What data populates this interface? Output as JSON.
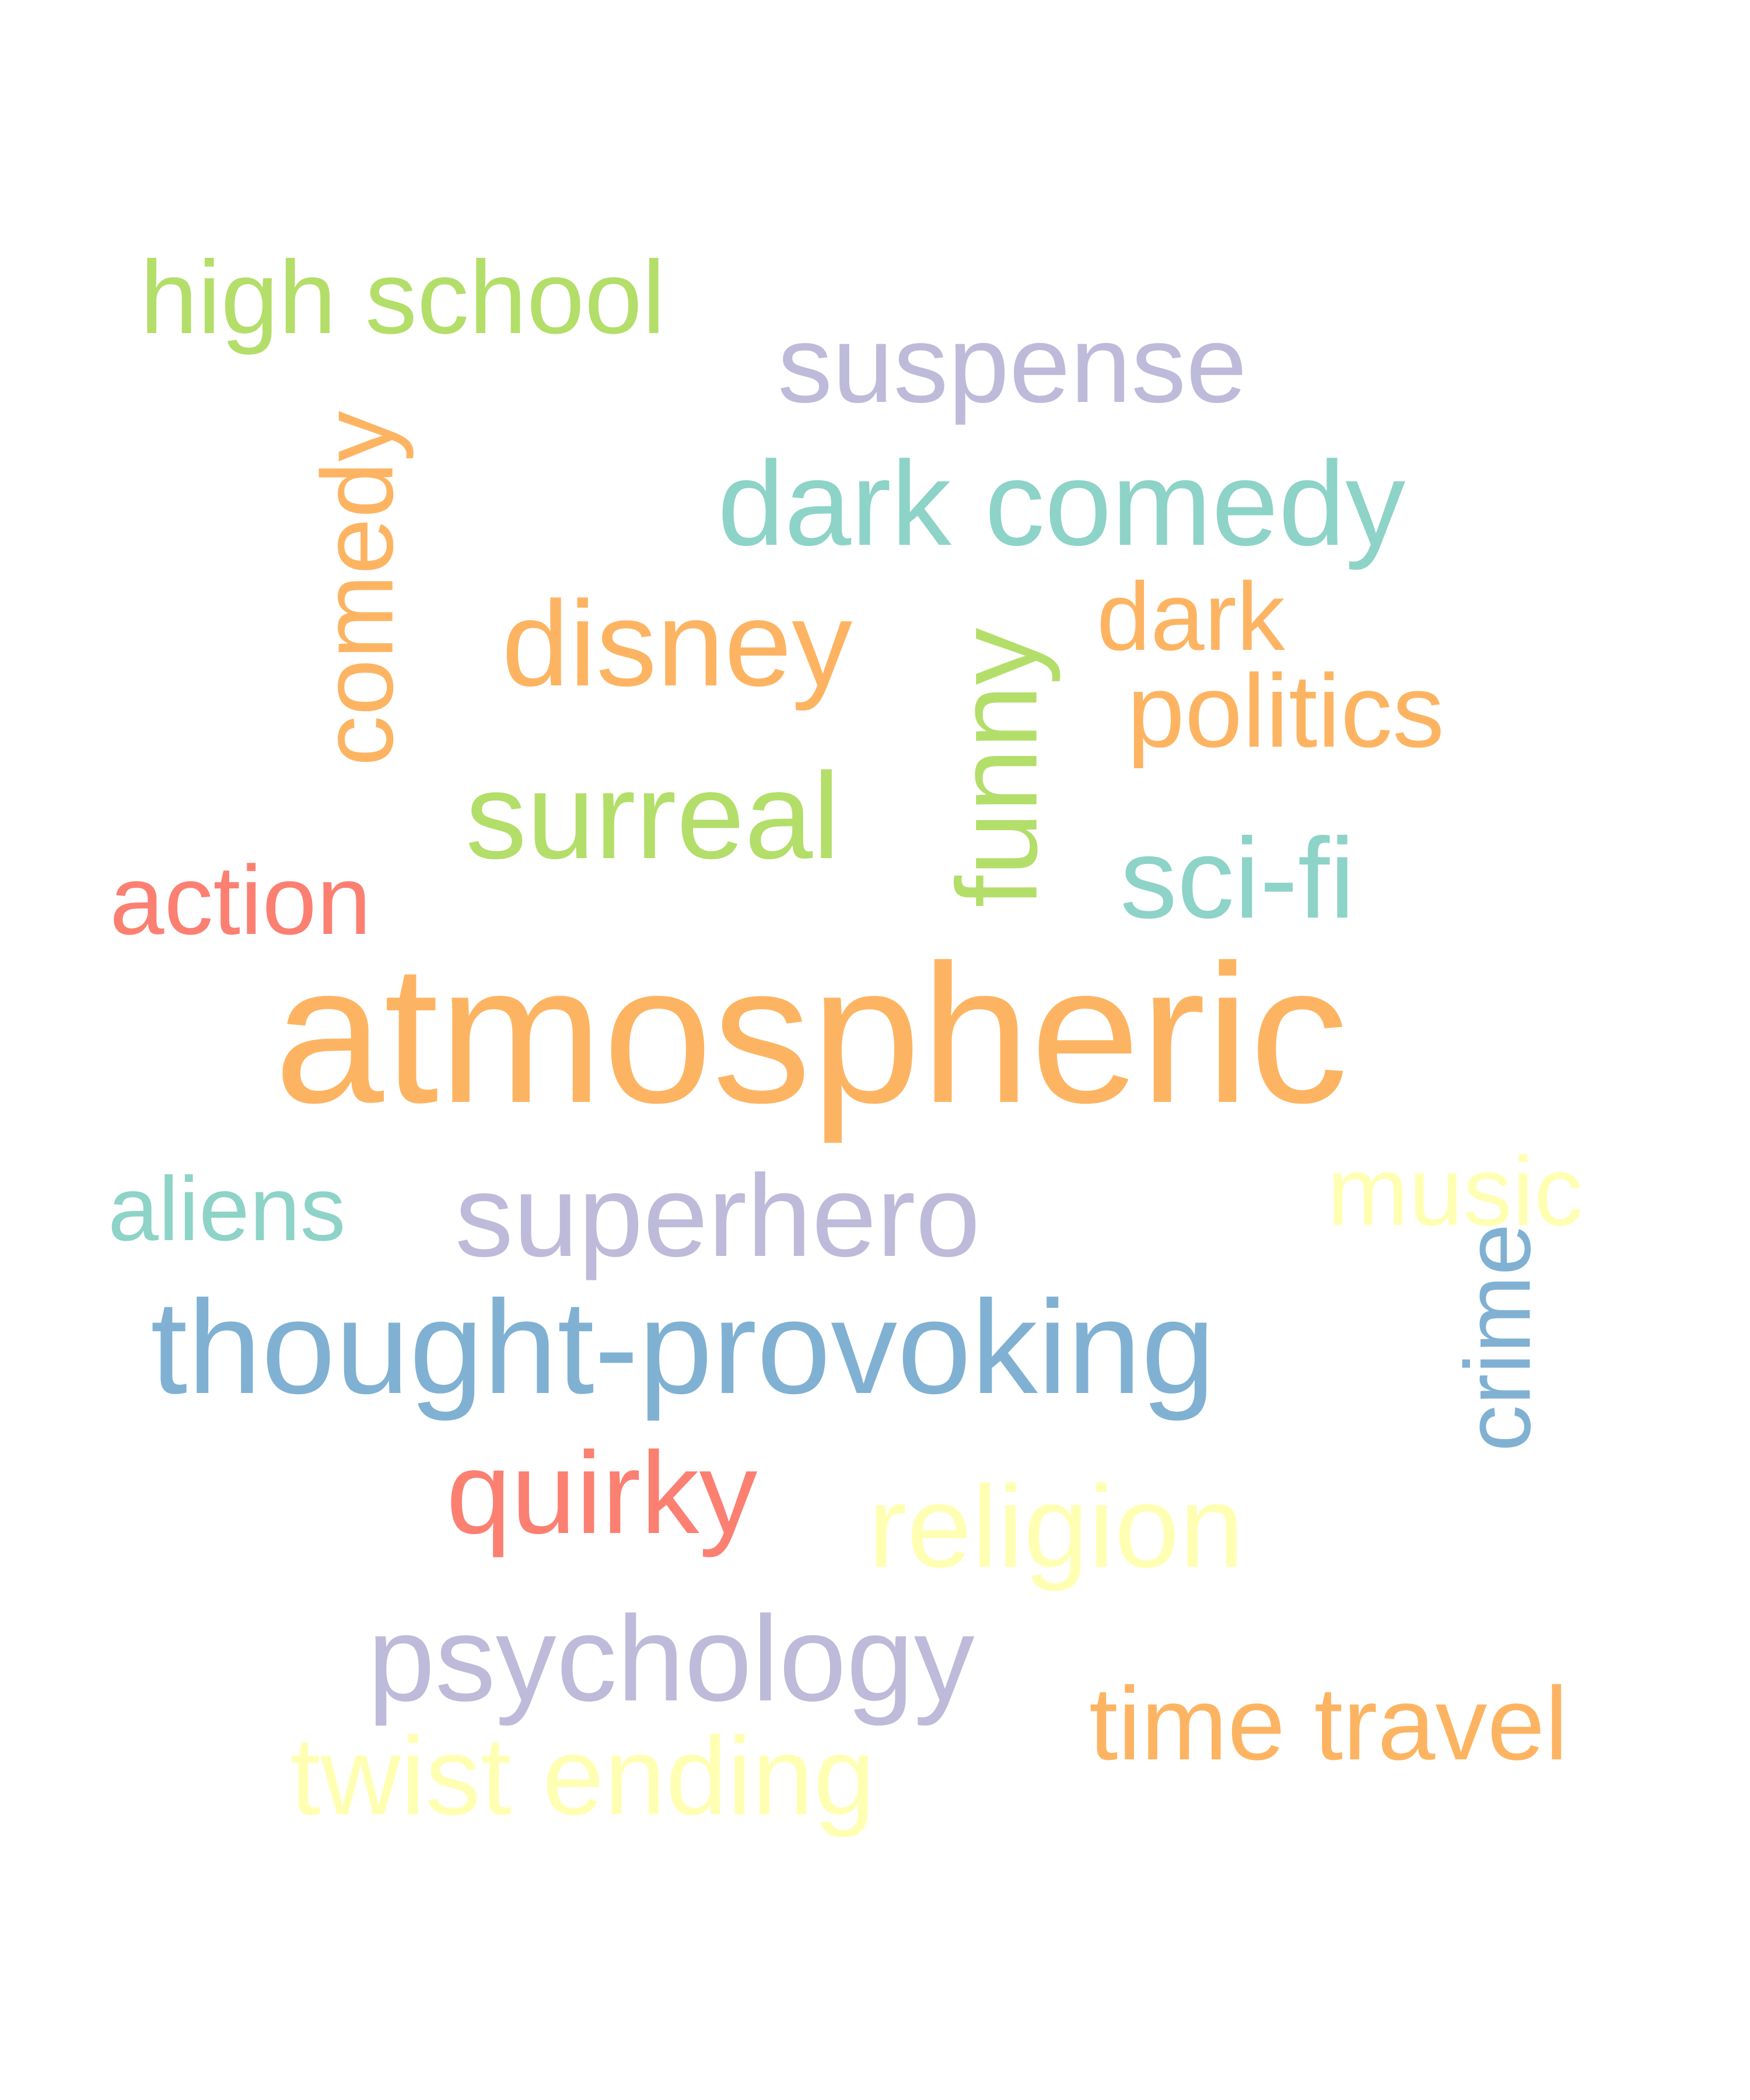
{
  "colors": {
    "orange": "#FDB462",
    "teal": "#8DD3C7",
    "green": "#B3DE69",
    "lavender": "#BEBADA",
    "red": "#FB8072",
    "blue": "#80B1D3",
    "yellow": "#FFFFB3"
  },
  "words": [
    {
      "text": "atmospheric",
      "color": "#FDB462"
    },
    {
      "text": "thought-provoking",
      "color": "#80B1D3"
    },
    {
      "text": "dark comedy",
      "color": "#8DD3C7"
    },
    {
      "text": "superhero",
      "color": "#BEBADA"
    },
    {
      "text": "surreal",
      "color": "#B3DE69"
    },
    {
      "text": "disney",
      "color": "#FDB462"
    },
    {
      "text": "psychology",
      "color": "#BEBADA"
    },
    {
      "text": "funny",
      "color": "#B3DE69",
      "orientation": "vertical"
    },
    {
      "text": "comedy",
      "color": "#FDB462",
      "orientation": "vertical"
    },
    {
      "text": "religion",
      "color": "#FFFFB3"
    },
    {
      "text": "quirky",
      "color": "#FB8072"
    },
    {
      "text": "suspense",
      "color": "#BEBADA"
    },
    {
      "text": "sci-fi",
      "color": "#8DD3C7"
    },
    {
      "text": "twist ending",
      "color": "#FFFFB3"
    },
    {
      "text": "crime",
      "color": "#80B1D3",
      "orientation": "vertical"
    },
    {
      "text": "high school",
      "color": "#B3DE69"
    },
    {
      "text": "politics",
      "color": "#FDB462"
    },
    {
      "text": "time travel",
      "color": "#FDB462"
    },
    {
      "text": "action",
      "color": "#FB8072"
    },
    {
      "text": "music",
      "color": "#FFFFB3"
    },
    {
      "text": "dark",
      "color": "#FDB462"
    },
    {
      "text": "aliens",
      "color": "#8DD3C7"
    }
  ]
}
